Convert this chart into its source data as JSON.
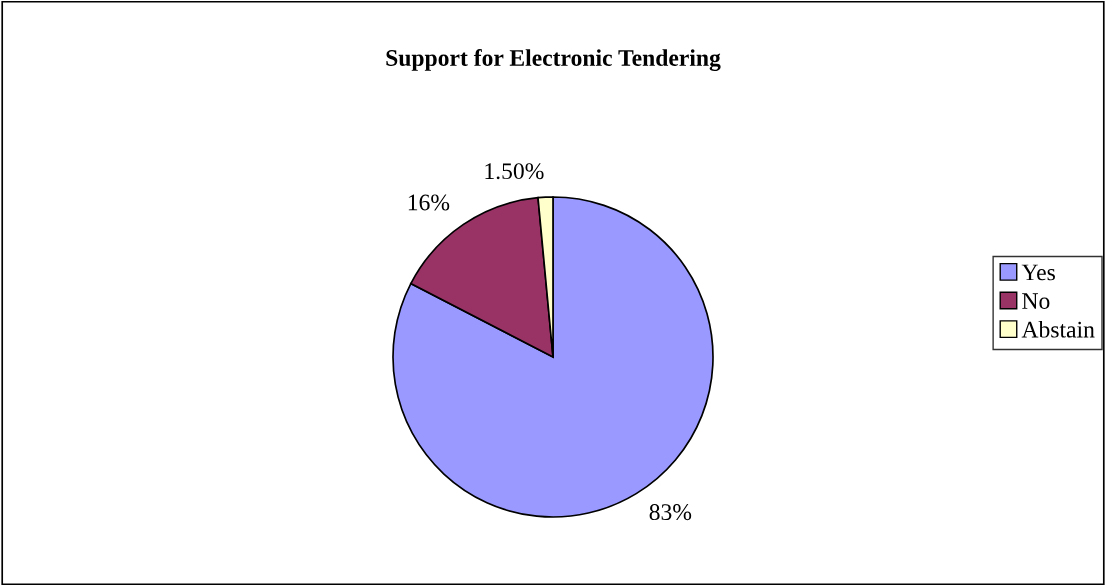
{
  "chart_data": {
    "type": "pie",
    "title": "Support for Electronic Tendering",
    "categories": [
      "Yes",
      "No",
      "Abstain"
    ],
    "values": [
      83,
      16,
      1.5
    ],
    "value_labels": [
      "83%",
      "16%",
      "1.50%"
    ],
    "colors": [
      "#9999ff",
      "#993366",
      "#ffffcc"
    ],
    "legend": "right"
  }
}
